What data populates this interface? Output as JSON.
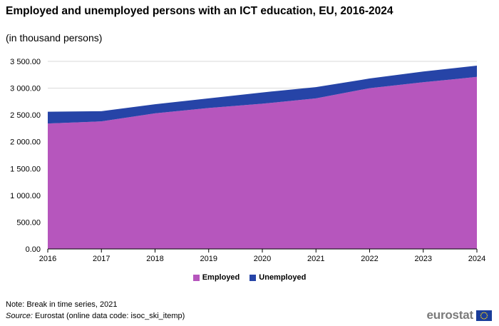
{
  "title": "Employed and unemployed persons with an ICT education, EU, 2016-2024",
  "subtitle": "(in thousand persons)",
  "note": "Note: Break in time series, 2021",
  "source": {
    "label": "Source:",
    "text": "Eurostat (online data code: isoc_ski_itemp)"
  },
  "logo": {
    "text": "eurostat",
    "icon": "eu-flag-icon"
  },
  "colors": {
    "employed": "#b656bd",
    "unemployed": "#2644a7",
    "grid": "#d9d9d9"
  },
  "chart_data": {
    "type": "area",
    "stacked": true,
    "x": [
      "2016",
      "2017",
      "2018",
      "2019",
      "2020",
      "2021",
      "2022",
      "2023",
      "2024"
    ],
    "series": [
      {
        "name": "Employed",
        "values": [
          2340,
          2380,
          2530,
          2630,
          2710,
          2810,
          3000,
          3110,
          3210
        ]
      },
      {
        "name": "Unemployed",
        "values": [
          220,
          190,
          170,
          180,
          210,
          210,
          180,
          200,
          210
        ]
      }
    ],
    "yticks": [
      "0.00",
      "500.00",
      "1 000.00",
      "1 500.00",
      "2 000.00",
      "2 500.00",
      "3 000.00",
      "3 500.00"
    ],
    "ylim": [
      0,
      3500
    ],
    "grid": true,
    "legend_position": "bottom"
  }
}
